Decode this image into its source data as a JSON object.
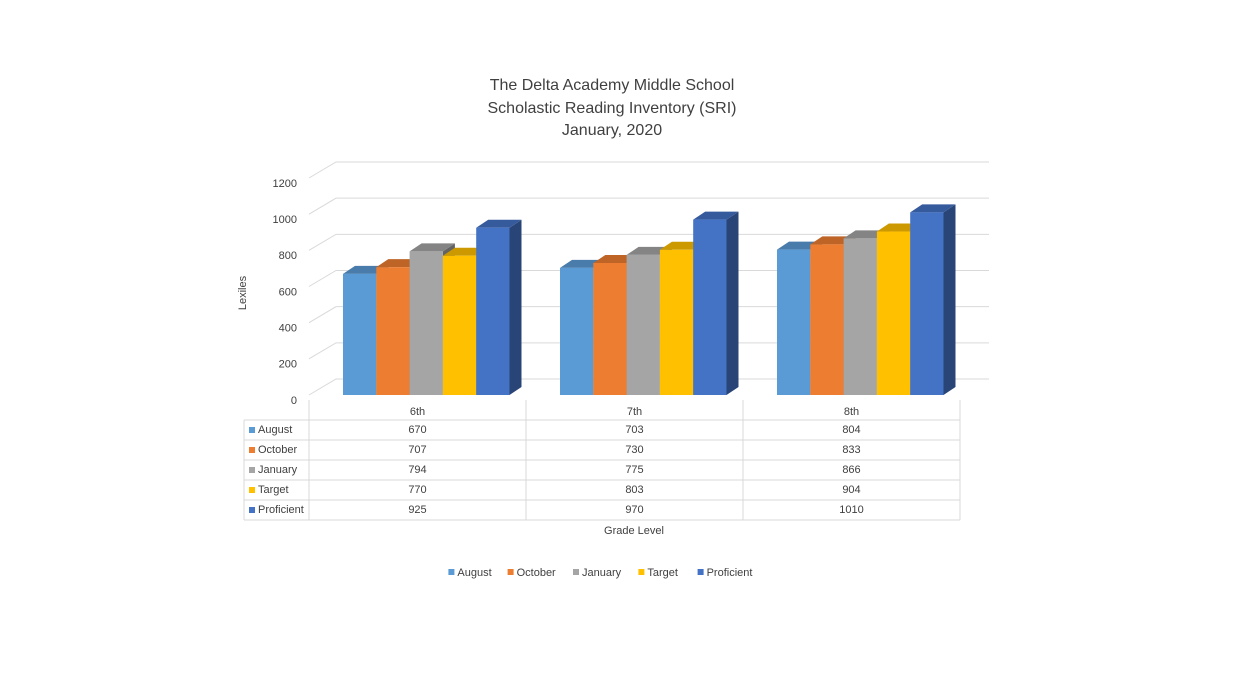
{
  "chart_data": {
    "type": "bar",
    "title": [
      "The Delta Academy Middle School",
      "Scholastic Reading Inventory (SRI)",
      "January, 2020"
    ],
    "ylabel": "Lexiles",
    "xlabel": "Grade Level",
    "categories": [
      "6th",
      "7th",
      "8th"
    ],
    "series": [
      {
        "name": "August",
        "color": "#5b9bd5",
        "values": [
          670,
          703,
          804
        ]
      },
      {
        "name": "October",
        "color": "#ed7d31",
        "values": [
          707,
          730,
          833
        ]
      },
      {
        "name": "January",
        "color": "#a5a5a5",
        "values": [
          794,
          775,
          866
        ]
      },
      {
        "name": "Target",
        "color": "#ffc000",
        "values": [
          770,
          803,
          904
        ]
      },
      {
        "name": "Proficient",
        "color": "#4472c4",
        "values": [
          925,
          970,
          1010
        ]
      }
    ],
    "ylim": [
      0,
      1200
    ],
    "yticks": [
      0,
      200,
      400,
      600,
      800,
      1000,
      1200
    ],
    "grid": true,
    "legend": "bottom",
    "data_table": true
  }
}
